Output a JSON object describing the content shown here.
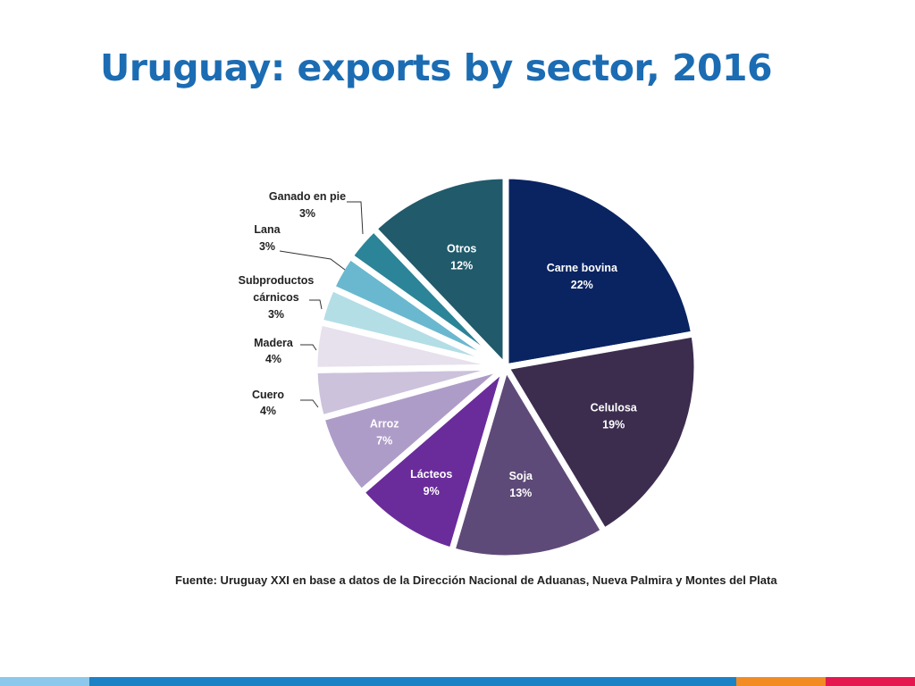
{
  "slide": {
    "title": "Uruguay: exports by sector, 2016"
  },
  "chart_data": {
    "type": "pie",
    "title": "",
    "source": "Fuente: Uruguay XXI en base a datos de la Dirección Nacional de Aduanas, Nueva Palmira y Montes del Plata",
    "slices": [
      {
        "label": "Carne bovina",
        "label_lines": [
          "Carne bovina"
        ],
        "value": 22,
        "value_label": "22%",
        "color": "#0a2462",
        "label_color": "#ffffff"
      },
      {
        "label": "Celulosa",
        "label_lines": [
          "Celulosa"
        ],
        "value": 19,
        "value_label": "19%",
        "color": "#3c2d4f",
        "label_color": "#ffffff"
      },
      {
        "label": "Soja",
        "label_lines": [
          "Soja"
        ],
        "value": 13,
        "value_label": "13%",
        "color": "#5e4a78",
        "label_color": "#ffffff"
      },
      {
        "label": "Lácteos",
        "label_lines": [
          "Lácteos"
        ],
        "value": 9,
        "value_label": "9%",
        "color": "#6a2c9b",
        "label_color": "#ffffff"
      },
      {
        "label": "Arroz",
        "label_lines": [
          "Arroz"
        ],
        "value": 7,
        "value_label": "7%",
        "color": "#ae9cc8",
        "label_color": "#ffffff"
      },
      {
        "label": "Cuero",
        "label_lines": [
          "Cuero"
        ],
        "value": 4,
        "value_label": "4%",
        "color": "#ccc2dc",
        "label_color": "#222222"
      },
      {
        "label": "Madera",
        "label_lines": [
          "Madera"
        ],
        "value": 4,
        "value_label": "4%",
        "color": "#e7e1ed",
        "label_color": "#222222"
      },
      {
        "label": "Subproductos cárnicos",
        "label_lines": [
          "Subproductos",
          "cárnicos"
        ],
        "value": 3,
        "value_label": "3%",
        "color": "#b3dee6",
        "label_color": "#222222"
      },
      {
        "label": "Lana",
        "label_lines": [
          "Lana"
        ],
        "value": 3,
        "value_label": "3%",
        "color": "#6ab8cf",
        "label_color": "#222222"
      },
      {
        "label": "Ganado en pie",
        "label_lines": [
          "Ganado en pie"
        ],
        "value": 3,
        "value_label": "3%",
        "color": "#2b8497",
        "label_color": "#222222"
      },
      {
        "label": "Otros",
        "label_lines": [
          "Otros"
        ],
        "value": 12,
        "value_label": "12%",
        "color": "#205a6b",
        "label_color": "#ffffff"
      }
    ]
  },
  "footer": {
    "colors": [
      "#8cc8ec",
      "#1b82c6",
      "#f28c22",
      "#e4174f"
    ]
  }
}
